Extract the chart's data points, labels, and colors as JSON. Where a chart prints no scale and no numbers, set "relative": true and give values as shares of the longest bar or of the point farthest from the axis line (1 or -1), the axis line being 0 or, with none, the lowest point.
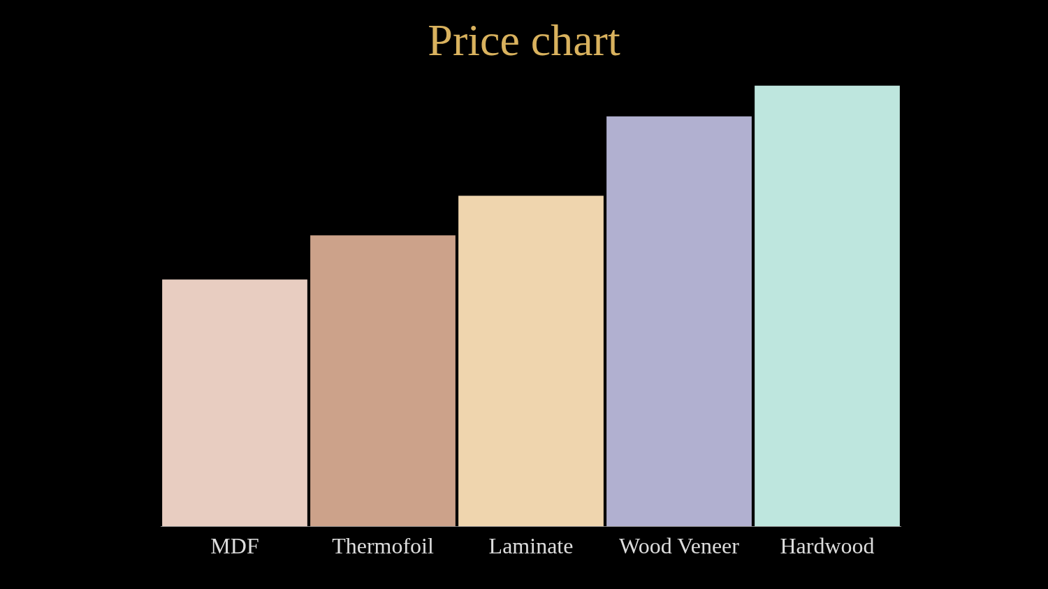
{
  "chart_data": {
    "type": "bar",
    "title": "Price chart",
    "relative": true,
    "categories": [
      "MDF",
      "Thermofoil",
      "Laminate",
      "Wood Veneer",
      "Hardwood"
    ],
    "values": [
      0.56,
      0.66,
      0.75,
      0.93,
      1
    ],
    "colors": [
      "#e8cdc1",
      "#cca28a",
      "#efd5ae",
      "#b1b0d0",
      "#bee6de"
    ],
    "grid": false,
    "legend": false
  }
}
